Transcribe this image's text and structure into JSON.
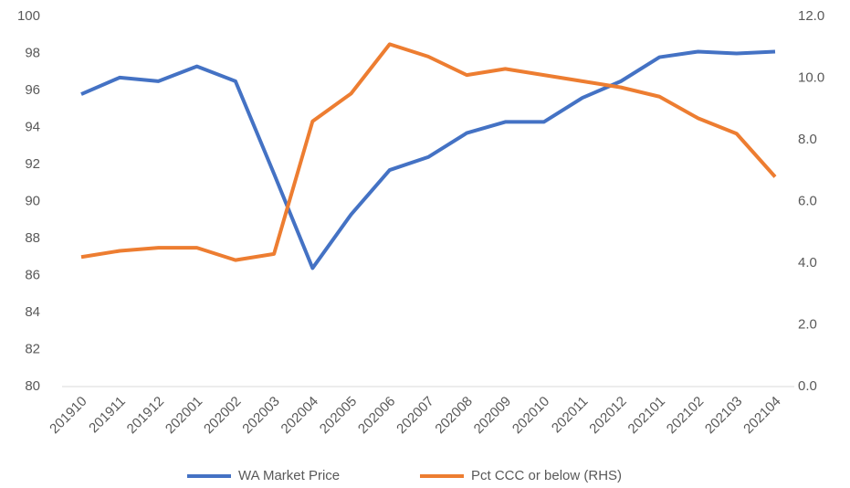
{
  "chart_data": {
    "type": "line",
    "categories": [
      "201910",
      "201911",
      "201912",
      "202001",
      "202002",
      "202003",
      "202004",
      "202005",
      "202006",
      "202007",
      "202008",
      "202009",
      "202010",
      "202011",
      "202012",
      "202101",
      "202102",
      "202103",
      "202104"
    ],
    "series": [
      {
        "name": "WA Market Price",
        "color": "#4472c4",
        "values": [
          95.8,
          96.7,
          96.5,
          97.3,
          96.5,
          91.5,
          86.4,
          89.3,
          91.7,
          92.4,
          93.7,
          94.3,
          94.3,
          95.6,
          96.5,
          97.8,
          98.1,
          98.0,
          98.1
        ]
      },
      {
        "name": "Pct CCC or below  (RHS)",
        "color": "#ed7d31",
        "axis": "y2",
        "values": [
          4.2,
          4.4,
          4.5,
          4.5,
          4.1,
          4.3,
          8.6,
          9.5,
          11.1,
          10.7,
          10.1,
          10.3,
          10.1,
          9.9,
          9.7,
          9.4,
          8.7,
          8.2,
          6.8
        ]
      }
    ],
    "ylim": [
      80,
      100
    ],
    "yticks": [
      80,
      82,
      84,
      86,
      88,
      90,
      92,
      94,
      96,
      98,
      100
    ],
    "y2lim": [
      0,
      12
    ],
    "y2ticks": [
      {
        "value": 0,
        "label": "0.0"
      },
      {
        "value": 2,
        "label": "2.0"
      },
      {
        "value": 4,
        "label": "4.0"
      },
      {
        "value": 6,
        "label": "6.0"
      },
      {
        "value": 8,
        "label": "8.0"
      },
      {
        "value": 10,
        "label": "10.0"
      },
      {
        "value": 12,
        "label": "12.0"
      }
    ],
    "legend": "bottom"
  }
}
